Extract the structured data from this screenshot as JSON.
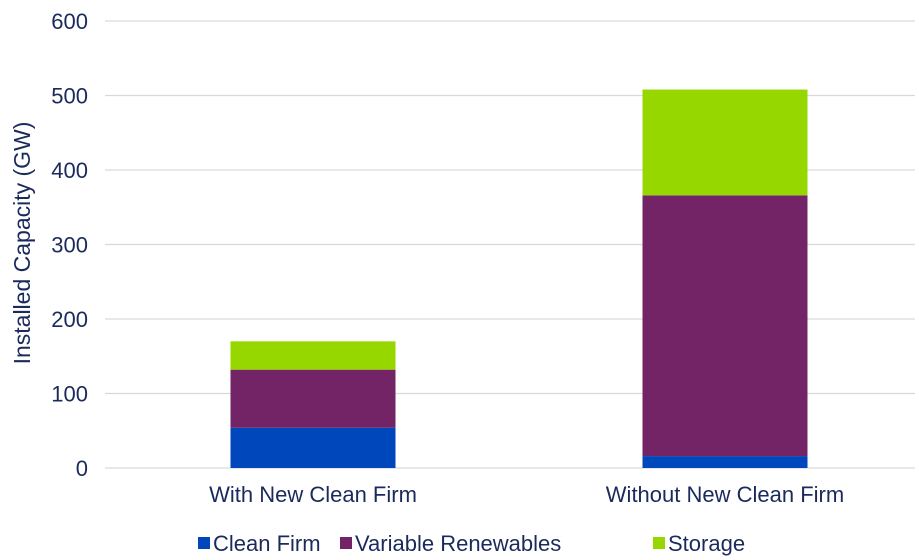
{
  "chart_data": {
    "type": "bar",
    "stacked": true,
    "categories": [
      "With New Clean Firm",
      "Without New Clean Firm"
    ],
    "series": [
      {
        "name": "Clean Firm",
        "values": [
          54,
          16
        ],
        "color": "#0047BB"
      },
      {
        "name": "Variable Renewables",
        "values": [
          78,
          350
        ],
        "color": "#722467"
      },
      {
        "name": "Storage",
        "values": [
          38,
          142
        ],
        "color": "#97D700"
      }
    ],
    "title": "",
    "xlabel": "",
    "ylabel": "Installed Capacity (GW)",
    "ylim": [
      0,
      600
    ],
    "yticks": [
      0,
      100,
      200,
      300,
      400,
      500,
      600
    ],
    "grid": true,
    "legend_position": "bottom",
    "text_color": "#1B2A5C",
    "grid_color": "#D9D9D9"
  }
}
